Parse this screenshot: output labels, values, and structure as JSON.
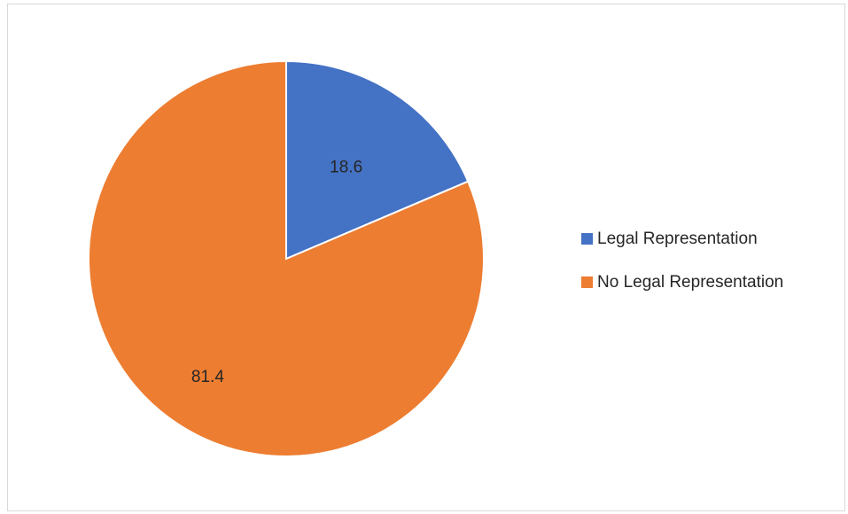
{
  "chart_data": {
    "type": "pie",
    "title": "",
    "categories": [
      "Legal Representation",
      "No Legal Representation"
    ],
    "values": [
      18.6,
      81.4
    ],
    "data_labels": [
      "18.6",
      "81.4"
    ],
    "colors": [
      "#4472C4",
      "#ED7D31"
    ],
    "start_angle_deg": 0,
    "direction": "clockwise",
    "legend_position": "right"
  }
}
